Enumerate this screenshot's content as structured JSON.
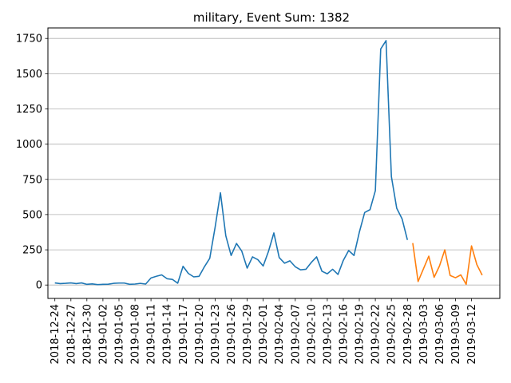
{
  "chart_data": {
    "type": "line",
    "title": "military, Event Sum: 1382",
    "xlabel": "",
    "ylabel": "",
    "x_start": "2018-12-24",
    "x_end": "2019-03-16",
    "xtick_labels": [
      "2018-12-24",
      "2018-12-27",
      "2018-12-30",
      "2019-01-02",
      "2019-01-05",
      "2019-01-08",
      "2019-01-11",
      "2019-01-14",
      "2019-01-17",
      "2019-01-20",
      "2019-01-23",
      "2019-01-26",
      "2019-01-29",
      "2019-02-01",
      "2019-02-04",
      "2019-02-07",
      "2019-02-10",
      "2019-02-13",
      "2019-02-16",
      "2019-02-19",
      "2019-02-22",
      "2019-02-25",
      "2019-02-28",
      "2019-03-03",
      "2019-03-06",
      "2019-03-09",
      "2019-03-12"
    ],
    "ylim": [
      -95,
      1825
    ],
    "yticks": [
      0,
      250,
      500,
      750,
      1000,
      1250,
      1500,
      1750
    ],
    "ytick_labels": [
      "0",
      "250",
      "500",
      "750",
      "1000",
      "1250",
      "1500",
      "1750"
    ],
    "grid": "y",
    "series": [
      {
        "color": "#1f77b4",
        "points": [
          [
            "2018-12-24",
            15
          ],
          [
            "2018-12-25",
            10
          ],
          [
            "2018-12-26",
            12
          ],
          [
            "2018-12-27",
            15
          ],
          [
            "2018-12-28",
            10
          ],
          [
            "2018-12-29",
            15
          ],
          [
            "2018-12-30",
            5
          ],
          [
            "2018-12-31",
            8
          ],
          [
            "2019-01-01",
            3
          ],
          [
            "2019-01-02",
            5
          ],
          [
            "2019-01-03",
            6
          ],
          [
            "2019-01-04",
            12
          ],
          [
            "2019-01-05",
            14
          ],
          [
            "2019-01-06",
            14
          ],
          [
            "2019-01-07",
            5
          ],
          [
            "2019-01-08",
            7
          ],
          [
            "2019-01-09",
            12
          ],
          [
            "2019-01-10",
            7
          ],
          [
            "2019-01-11",
            50
          ],
          [
            "2019-01-12",
            62
          ],
          [
            "2019-01-13",
            72
          ],
          [
            "2019-01-14",
            45
          ],
          [
            "2019-01-15",
            40
          ],
          [
            "2019-01-16",
            13
          ],
          [
            "2019-01-17",
            133
          ],
          [
            "2019-01-18",
            82
          ],
          [
            "2019-01-19",
            58
          ],
          [
            "2019-01-20",
            62
          ],
          [
            "2019-01-21",
            130
          ],
          [
            "2019-01-22",
            190
          ],
          [
            "2019-01-23",
            410
          ],
          [
            "2019-01-24",
            655
          ],
          [
            "2019-01-25",
            350
          ],
          [
            "2019-01-26",
            210
          ],
          [
            "2019-01-27",
            295
          ],
          [
            "2019-01-28",
            240
          ],
          [
            "2019-01-29",
            120
          ],
          [
            "2019-01-30",
            200
          ],
          [
            "2019-01-31",
            180
          ],
          [
            "2019-02-01",
            135
          ],
          [
            "2019-02-02",
            240
          ],
          [
            "2019-02-03",
            370
          ],
          [
            "2019-02-04",
            195
          ],
          [
            "2019-02-05",
            155
          ],
          [
            "2019-02-06",
            172
          ],
          [
            "2019-02-07",
            130
          ],
          [
            "2019-02-08",
            108
          ],
          [
            "2019-02-09",
            112
          ],
          [
            "2019-02-10",
            160
          ],
          [
            "2019-02-11",
            200
          ],
          [
            "2019-02-12",
            98
          ],
          [
            "2019-02-13",
            80
          ],
          [
            "2019-02-14",
            112
          ],
          [
            "2019-02-15",
            75
          ],
          [
            "2019-02-16",
            175
          ],
          [
            "2019-02-17",
            245
          ],
          [
            "2019-02-18",
            210
          ],
          [
            "2019-02-19",
            375
          ],
          [
            "2019-02-20",
            515
          ],
          [
            "2019-02-21",
            535
          ],
          [
            "2019-02-22",
            670
          ],
          [
            "2019-02-23",
            1675
          ],
          [
            "2019-02-24",
            1735
          ],
          [
            "2019-02-25",
            770
          ],
          [
            "2019-02-26",
            545
          ],
          [
            "2019-02-27",
            470
          ],
          [
            "2019-02-28",
            320
          ]
        ]
      },
      {
        "color": "#ff7f0e",
        "points": [
          [
            "2019-03-01",
            298
          ],
          [
            "2019-03-02",
            25
          ],
          [
            "2019-03-03",
            115
          ],
          [
            "2019-03-04",
            205
          ],
          [
            "2019-03-05",
            55
          ],
          [
            "2019-03-06",
            135
          ],
          [
            "2019-03-07",
            250
          ],
          [
            "2019-03-08",
            68
          ],
          [
            "2019-03-09",
            52
          ],
          [
            "2019-03-10",
            72
          ],
          [
            "2019-03-11",
            5
          ],
          [
            "2019-03-12",
            278
          ],
          [
            "2019-03-13",
            145
          ],
          [
            "2019-03-14",
            70
          ]
        ]
      }
    ]
  }
}
